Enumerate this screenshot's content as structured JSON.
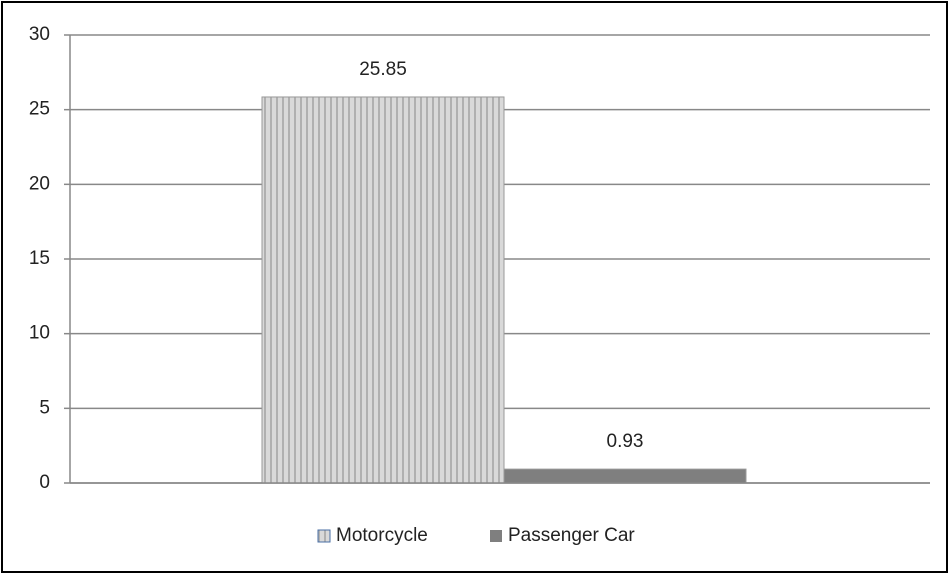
{
  "chart_data": {
    "type": "bar",
    "categories": [
      null
    ],
    "series": [
      {
        "name": "Motorcycle",
        "color": "#d9d9d9",
        "values": [
          25.85
        ]
      },
      {
        "name": "Passenger Car",
        "color": "#7f7f7f",
        "values": [
          0.93
        ]
      }
    ],
    "ylim": [
      0,
      30
    ],
    "yticks": [
      0,
      5,
      10,
      15,
      20,
      25,
      30
    ],
    "grid": true,
    "legend": "bottom"
  }
}
